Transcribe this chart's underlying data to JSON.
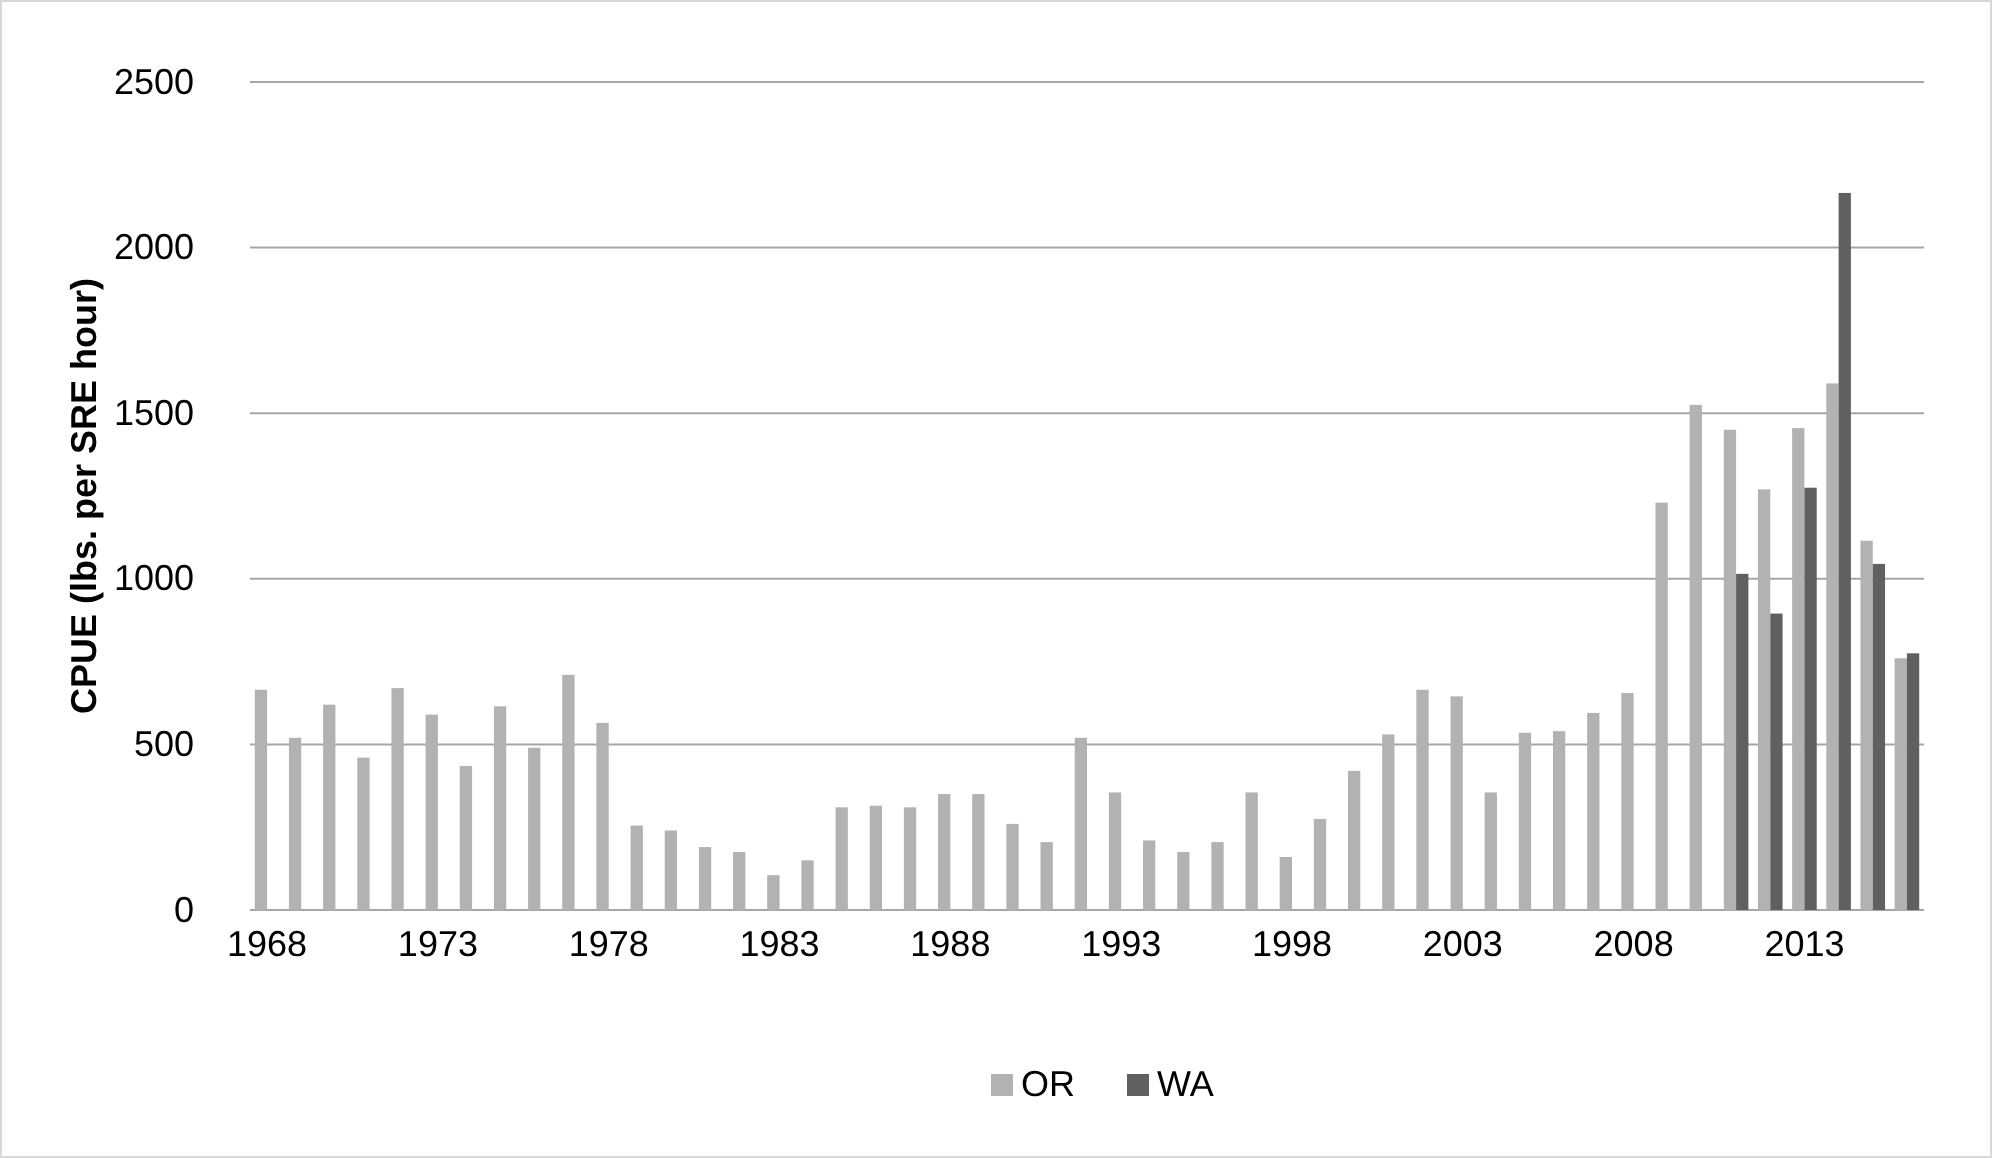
{
  "chart_data": {
    "type": "bar",
    "ylabel": "CPUE (lbs. per SRE hour)",
    "categories": [
      "1968",
      null,
      null,
      null,
      null,
      "1973",
      null,
      null,
      null,
      null,
      "1978",
      null,
      null,
      null,
      null,
      "1983",
      null,
      null,
      null,
      null,
      "1988",
      null,
      null,
      null,
      null,
      "1993",
      null,
      null,
      null,
      null,
      "1998",
      null,
      null,
      null,
      null,
      "2003",
      null,
      null,
      null,
      null,
      "2008",
      null,
      null,
      null,
      null,
      "2013",
      null,
      null,
      null
    ],
    "series": [
      {
        "name": "OR",
        "color": "#b2b2b2",
        "values": [
          665,
          520,
          620,
          460,
          670,
          590,
          435,
          615,
          490,
          710,
          565,
          255,
          240,
          190,
          175,
          105,
          150,
          310,
          315,
          310,
          350,
          350,
          260,
          205,
          520,
          355,
          210,
          175,
          205,
          355,
          160,
          275,
          420,
          530,
          665,
          645,
          355,
          535,
          540,
          595,
          655,
          1230,
          1525,
          1450,
          1270,
          1455,
          1590,
          1115,
          760
        ]
      },
      {
        "name": "WA",
        "color": "#606060",
        "values": [
          null,
          null,
          null,
          null,
          null,
          null,
          null,
          null,
          null,
          null,
          null,
          null,
          null,
          null,
          null,
          null,
          null,
          null,
          null,
          null,
          null,
          null,
          null,
          null,
          null,
          null,
          null,
          null,
          null,
          null,
          null,
          null,
          null,
          null,
          null,
          null,
          null,
          null,
          null,
          null,
          null,
          null,
          null,
          1015,
          895,
          1275,
          2165,
          1045,
          775
        ]
      }
    ],
    "ylim": [
      0,
      2500
    ],
    "yticks": [
      0,
      500,
      1000,
      1500,
      2000,
      2500
    ],
    "grid": "y",
    "legend": "bottom"
  }
}
